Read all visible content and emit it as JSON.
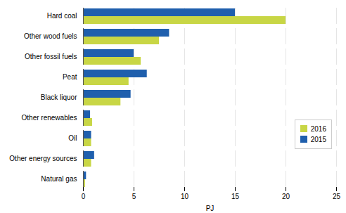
{
  "chart_data": {
    "type": "bar",
    "orientation": "horizontal",
    "categories": [
      "Hard coal",
      "Other wood fuels",
      "Other fossil fuels",
      "Peat",
      "Black liquor",
      "Other renewables",
      "Oil",
      "Other energy sources",
      "Natural gas"
    ],
    "series": [
      {
        "name": "2016",
        "color": "#c8d645",
        "values": [
          20.0,
          7.5,
          5.7,
          4.5,
          3.7,
          0.9,
          0.8,
          0.8,
          0.2
        ]
      },
      {
        "name": "2015",
        "color": "#1f5fad",
        "values": [
          15.0,
          8.5,
          5.0,
          6.3,
          4.7,
          0.7,
          0.8,
          1.1,
          0.3
        ]
      }
    ],
    "xlabel": "PJ",
    "xlim": [
      0,
      25
    ],
    "xticks": [
      0,
      5,
      10,
      15,
      20,
      25
    ],
    "grid": true,
    "legend": "right"
  }
}
